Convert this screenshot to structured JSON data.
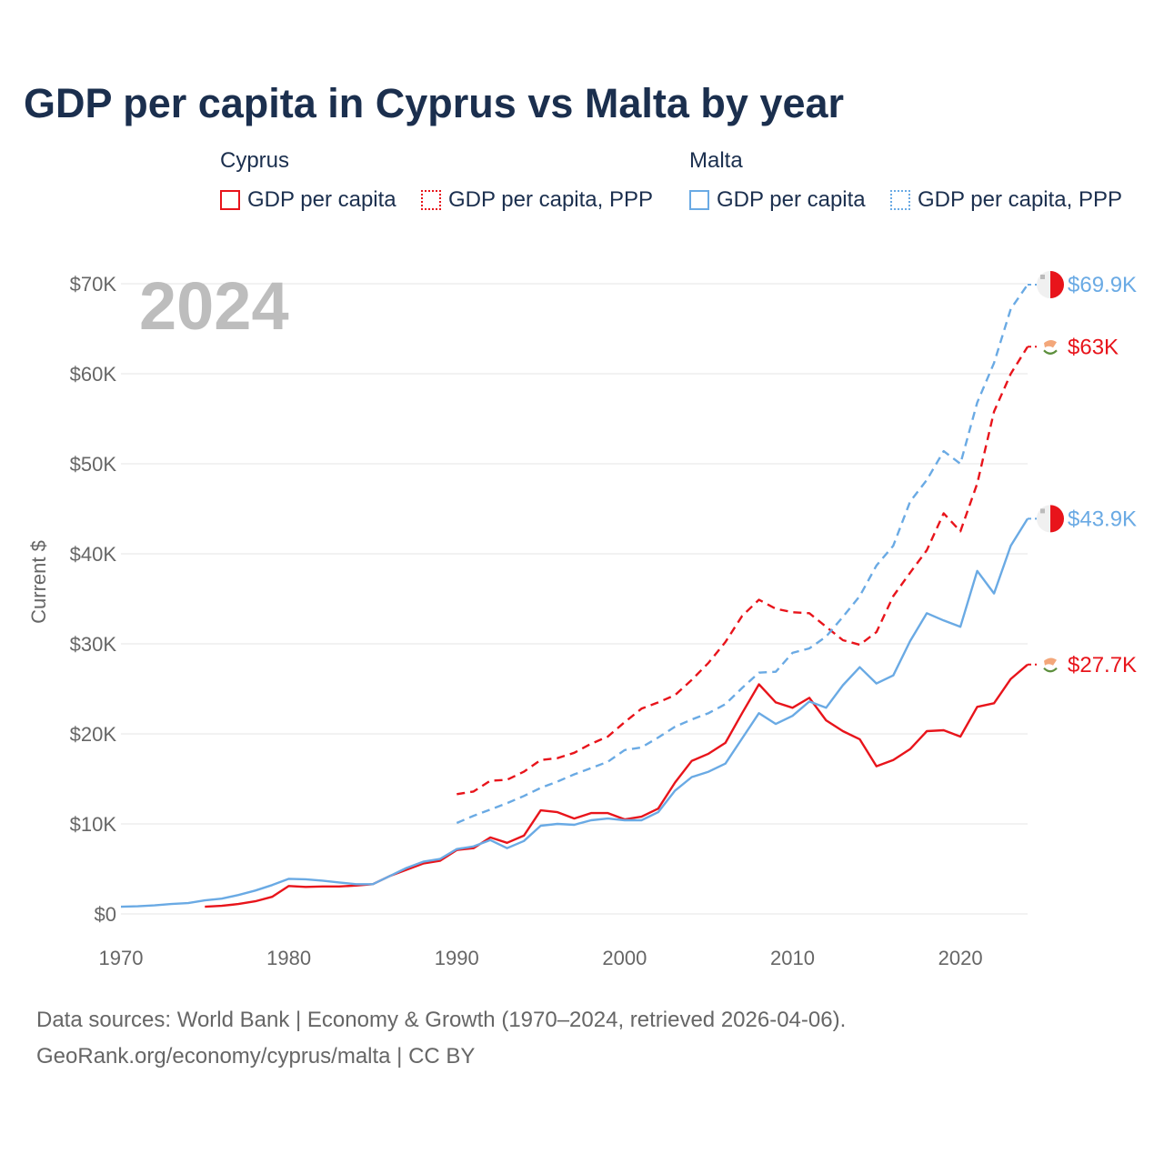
{
  "title": "GDP per capita in Cyprus vs Malta by year",
  "legend": {
    "groups": [
      {
        "name": "Cyprus",
        "items": [
          "GDP per capita",
          "GDP per capita, PPP"
        ],
        "color": "#e8141b"
      },
      {
        "name": "Malta",
        "items": [
          "GDP per capita",
          "GDP per capita, PPP"
        ],
        "color": "#6aaae4"
      }
    ]
  },
  "year_label": "2024",
  "footer": {
    "line1": "Data sources: World Bank | Economy & Growth (1970–2024, retrieved 2026-04-06).",
    "line2": "GeoRank.org/economy/cyprus/malta | CC BY"
  },
  "chart_data": {
    "type": "line",
    "title": "GDP per capita in Cyprus vs Malta by year",
    "xlabel": "",
    "ylabel": "Current $",
    "xlim": [
      1970,
      2024
    ],
    "ylim": [
      0,
      70000
    ],
    "xticks": [
      1970,
      1980,
      1990,
      2000,
      2010,
      2020
    ],
    "yticks": [
      0,
      10000,
      20000,
      30000,
      40000,
      50000,
      60000,
      70000
    ],
    "ytick_labels": [
      "$0",
      "$10K",
      "$20K",
      "$30K",
      "$40K",
      "$50K",
      "$60K",
      "$70K"
    ],
    "grid": true,
    "series": [
      {
        "name": "Cyprus GDP per capita",
        "country": "Cyprus",
        "color": "#e8141b",
        "dash": "solid",
        "end_label": "$27.7K",
        "x": [
          1975,
          1976,
          1977,
          1978,
          1979,
          1980,
          1981,
          1982,
          1983,
          1984,
          1985,
          1986,
          1987,
          1988,
          1989,
          1990,
          1991,
          1992,
          1993,
          1994,
          1995,
          1996,
          1997,
          1998,
          1999,
          2000,
          2001,
          2002,
          2003,
          2004,
          2005,
          2006,
          2007,
          2008,
          2009,
          2010,
          2011,
          2012,
          2013,
          2014,
          2015,
          2016,
          2017,
          2018,
          2019,
          2020,
          2021,
          2022,
          2023,
          2024
        ],
        "y": [
          800,
          900,
          1100,
          1400,
          1900,
          3100,
          3000,
          3050,
          3050,
          3150,
          3300,
          4200,
          4900,
          5600,
          5900,
          7100,
          7300,
          8500,
          7900,
          8700,
          11500,
          11300,
          10600,
          11200,
          11200,
          10500,
          10800,
          11700,
          14600,
          17000,
          17800,
          19000,
          22300,
          25500,
          23500,
          22900,
          24000,
          21500,
          20300,
          19400,
          16400,
          17100,
          18300,
          20300,
          20400,
          19700,
          23000,
          23400,
          26100,
          27700
        ]
      },
      {
        "name": "Cyprus GDP per capita, PPP",
        "country": "Cyprus",
        "color": "#e8141b",
        "dash": "dashed",
        "end_label": "$63K",
        "x": [
          1990,
          1991,
          1992,
          1993,
          1994,
          1995,
          1996,
          1997,
          1998,
          1999,
          2000,
          2001,
          2002,
          2003,
          2004,
          2005,
          2006,
          2007,
          2008,
          2009,
          2010,
          2011,
          2012,
          2013,
          2014,
          2015,
          2016,
          2017,
          2018,
          2019,
          2020,
          2021,
          2022,
          2023,
          2024
        ],
        "y": [
          13300,
          13600,
          14800,
          14900,
          15800,
          17100,
          17300,
          17900,
          18900,
          19700,
          21300,
          22800,
          23500,
          24300,
          26000,
          27900,
          30200,
          33100,
          34900,
          33900,
          33500,
          33400,
          31900,
          30400,
          29900,
          31300,
          35300,
          37900,
          40400,
          44500,
          42500,
          47800,
          55800,
          60000,
          63000
        ]
      },
      {
        "name": "Malta GDP per capita",
        "country": "Malta",
        "color": "#6aaae4",
        "dash": "solid",
        "end_label": "$43.9K",
        "x": [
          1970,
          1971,
          1972,
          1973,
          1974,
          1975,
          1976,
          1977,
          1978,
          1979,
          1980,
          1981,
          1982,
          1983,
          1984,
          1985,
          1986,
          1987,
          1988,
          1989,
          1990,
          1991,
          1992,
          1993,
          1994,
          1995,
          1996,
          1997,
          1998,
          1999,
          2000,
          2001,
          2002,
          2003,
          2004,
          2005,
          2006,
          2007,
          2008,
          2009,
          2010,
          2011,
          2012,
          2013,
          2014,
          2015,
          2016,
          2017,
          2018,
          2019,
          2020,
          2021,
          2022,
          2023,
          2024
        ],
        "y": [
          800,
          850,
          950,
          1100,
          1200,
          1500,
          1700,
          2100,
          2600,
          3200,
          3900,
          3850,
          3700,
          3500,
          3300,
          3300,
          4200,
          5100,
          5800,
          6100,
          7200,
          7500,
          8200,
          7300,
          8100,
          9800,
          10000,
          9900,
          10400,
          10600,
          10400,
          10400,
          11300,
          13700,
          15200,
          15800,
          16700,
          19500,
          22300,
          21100,
          22000,
          23600,
          22900,
          25400,
          27400,
          25600,
          26500,
          30300,
          33400,
          32600,
          31900,
          38100,
          35600,
          40900,
          43900
        ]
      },
      {
        "name": "Malta GDP per capita, PPP",
        "country": "Malta",
        "color": "#6aaae4",
        "dash": "dashed",
        "end_label": "$69.9K",
        "x": [
          1990,
          1991,
          1992,
          1993,
          1994,
          1995,
          1996,
          1997,
          1998,
          1999,
          2000,
          2001,
          2002,
          2003,
          2004,
          2005,
          2006,
          2007,
          2008,
          2009,
          2010,
          2011,
          2012,
          2013,
          2014,
          2015,
          2016,
          2017,
          2018,
          2019,
          2020,
          2021,
          2022,
          2023,
          2024
        ],
        "y": [
          10100,
          10900,
          11600,
          12300,
          13100,
          14000,
          14700,
          15500,
          16200,
          16900,
          18200,
          18500,
          19600,
          20800,
          21600,
          22300,
          23300,
          25100,
          26800,
          26900,
          29000,
          29500,
          30800,
          33000,
          35300,
          38700,
          40900,
          45800,
          48200,
          51400,
          50000,
          56800,
          61200,
          67200,
          69900
        ]
      }
    ]
  }
}
